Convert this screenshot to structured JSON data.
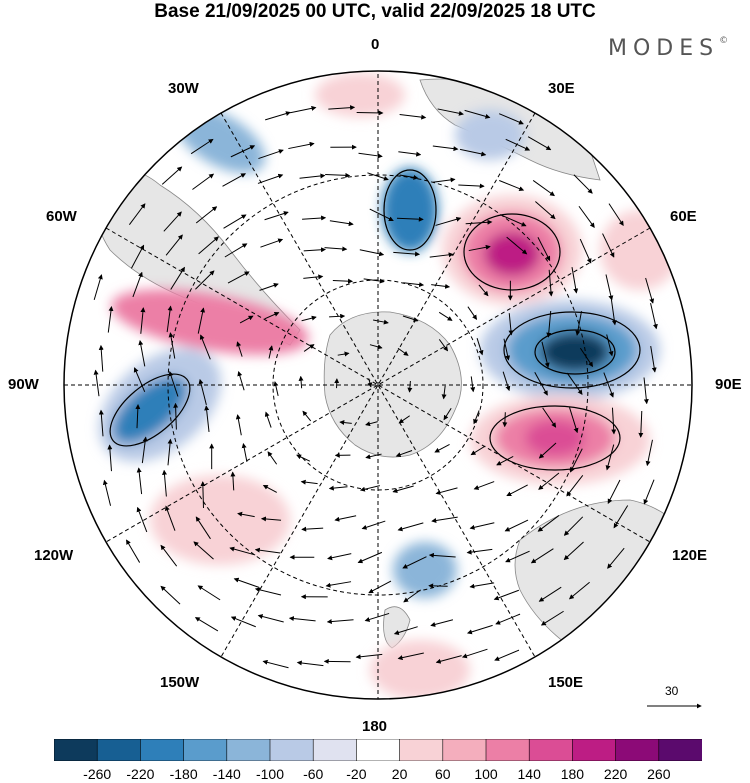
{
  "title": "Base 21/09/2025 00 UTC, valid 22/09/2025 18 UTC",
  "brand": {
    "name": "MODES",
    "mark": "©"
  },
  "labels": {
    "top": "0",
    "bottom": "180",
    "left": "90W",
    "right": "90E",
    "w30": "30W",
    "e30": "30E",
    "w60": "60W",
    "e60": "60E",
    "w120": "120W",
    "e120": "120E",
    "w150": "150W",
    "e150": "150E"
  },
  "reference_vector": {
    "value": "30"
  },
  "colorbar": {
    "ticks": [
      "-260",
      "-220",
      "-180",
      "-140",
      "-100",
      "-60",
      "-20",
      "20",
      "60",
      "100",
      "140",
      "180",
      "220",
      "260"
    ],
    "colors": [
      "#0d3a5c",
      "#175f93",
      "#2e7fb9",
      "#5a9ccc",
      "#8bb5d9",
      "#b9cae6",
      "#e0e2f0",
      "#ffffff",
      "#f8d2d6",
      "#f4aebd",
      "#ec7fa6",
      "#db4d95",
      "#bd1d84",
      "#8c0a77",
      "#5b0a6d"
    ]
  },
  "anomalies": [
    {
      "name": "positive-center-e60",
      "value": "180"
    },
    {
      "name": "negative-center-e90",
      "value": "-260"
    },
    {
      "name": "positive-center-e105",
      "value": "180"
    },
    {
      "name": "negative-center-w100",
      "value": "-220"
    },
    {
      "name": "positive-band-w70",
      "value": "140"
    },
    {
      "name": "negative-center-e15",
      "value": "-180"
    }
  ]
}
